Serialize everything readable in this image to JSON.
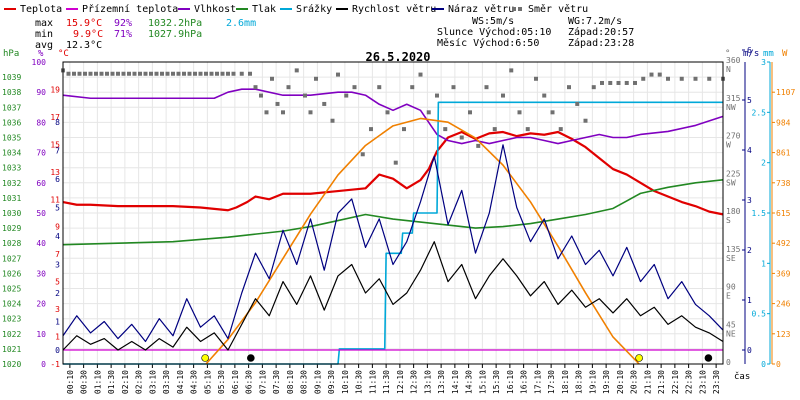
{
  "colors": {
    "teplota": "#e00000",
    "pocitova": "#d000d0",
    "vlhkost": "#8000c0",
    "tlak": "#228822",
    "srazky": "#00a8d8",
    "rychlost": "#000000",
    "naraz": "#000080",
    "smer": "#707070",
    "slunce": "#f08000"
  },
  "legend": [
    {
      "label": "Teplota",
      "color_key": "teplota",
      "kind": "line"
    },
    {
      "label": "Přízemní teplota",
      "color_key": "pocitova",
      "kind": "line"
    },
    {
      "label": "Vlhkost",
      "color_key": "vlhkost",
      "kind": "line"
    },
    {
      "label": "Tlak",
      "color_key": "tlak",
      "kind": "line"
    },
    {
      "label": "Srážky",
      "color_key": "srazky",
      "kind": "line"
    },
    {
      "label": "Rychlost větru",
      "color_key": "rychlost",
      "kind": "line"
    },
    {
      "label": "Náraz větru",
      "color_key": "naraz",
      "kind": "line"
    },
    {
      "label": "Směr větru",
      "color_key": "smer",
      "kind": "dots"
    }
  ],
  "stats": {
    "max_label": "max",
    "min_label": "min",
    "avg_label": "avg",
    "max_temp": "15.9°C",
    "max_hum": "92%",
    "max_press": "1032.2hPa",
    "max_rain": "2.6mm",
    "min_temp": "9.9°C",
    "min_hum": "71%",
    "min_press": "1027.9hPa",
    "avg_temp": "12.3°C"
  },
  "info": {
    "ws": "WS:5m/s",
    "wg": "WG:7.2m/s",
    "slunce": "Slunce Východ:05:10",
    "slunce_zapad": "Západ:20:57",
    "mesic": "Měsíc  Východ:6:50",
    "mesic_zapad": "Západ:23:28"
  },
  "title": "26.5.2020",
  "axis_units": {
    "hpa": "hPa",
    "pct": "%",
    "deg": "°C",
    "dir": "°",
    "ms_right": "m/s",
    "mm": "mm",
    "w": "W",
    "time": "čas"
  },
  "chart_data": {
    "type": "line",
    "title": "26.5.2020",
    "x_ticks": [
      "00:10",
      "00:30",
      "01:10",
      "01:30",
      "02:10",
      "02:30",
      "03:10",
      "03:30",
      "04:10",
      "04:30",
      "05:10",
      "05:30",
      "06:10",
      "06:30",
      "07:10",
      "07:30",
      "08:10",
      "08:30",
      "09:10",
      "09:30",
      "10:10",
      "10:30",
      "11:10",
      "11:30",
      "12:10",
      "12:30",
      "13:10",
      "13:30",
      "14:10",
      "14:30",
      "15:10",
      "15:30",
      "16:10",
      "16:30",
      "17:10",
      "17:30",
      "18:10",
      "18:30",
      "19:10",
      "19:30",
      "20:10",
      "20:30",
      "21:10",
      "21:30",
      "22:10",
      "22:30",
      "23:10",
      "23:30"
    ],
    "axes": {
      "pressure": {
        "unit": "hPa",
        "range": [
          1020,
          1040
        ],
        "ticks": [
          "1020",
          "1021",
          "1022",
          "1023",
          "1024",
          "1025",
          "1026",
          "1027",
          "1028",
          "1029",
          "1030",
          "1031",
          "1032",
          "1033",
          "1034",
          "1035",
          "1036",
          "1037",
          "1038",
          "1039"
        ]
      },
      "humidity": {
        "unit": "%",
        "range": [
          0,
          100
        ],
        "ticks": [
          "0",
          "10",
          "20",
          "30",
          "40",
          "50",
          "60",
          "70",
          "80",
          "90",
          "100"
        ]
      },
      "temperature": {
        "unit": "°C",
        "range": [
          -1,
          21
        ],
        "ticks": [
          "-1",
          "1",
          "3",
          "5",
          "7",
          "9",
          "11",
          "13",
          "15",
          "17",
          "19"
        ]
      },
      "wind_speed_left": {
        "ticks": [
          "0",
          "1",
          "2",
          "3",
          "4",
          "5",
          "6",
          "7",
          "8"
        ]
      },
      "wind_dir": {
        "unit": "°",
        "range": [
          0,
          360
        ],
        "ticks": [
          {
            "deg": "360",
            "dir": "N"
          },
          {
            "deg": "315",
            "dir": "NW"
          },
          {
            "deg": "270",
            "dir": "W"
          },
          {
            "deg": "225",
            "dir": "SW"
          },
          {
            "deg": "180",
            "dir": "S"
          },
          {
            "deg": "135",
            "dir": "SE"
          },
          {
            "deg": "90",
            "dir": "E"
          },
          {
            "deg": "45",
            "dir": "NE"
          },
          {
            "deg": "0",
            "dir": ""
          }
        ]
      },
      "wind_speed_right": {
        "unit": "m/s",
        "ticks": [
          "0",
          "1",
          "2",
          "3",
          "4",
          "5",
          "6"
        ]
      },
      "rain": {
        "unit": "mm",
        "range": [
          0,
          3
        ],
        "ticks": [
          "0",
          "0.5",
          "1",
          "1.5",
          "2",
          "2.5",
          "3"
        ]
      },
      "solar": {
        "unit": "W",
        "range": [
          0,
          1230
        ],
        "ticks": [
          "0",
          "123",
          "246",
          "369",
          "492",
          "615",
          "738",
          "861",
          "984",
          "1107"
        ]
      }
    },
    "series": [
      {
        "name": "Teplota",
        "axis": "temperature",
        "color_key": "teplota",
        "x": [
          0,
          0.5,
          1,
          2,
          3,
          4,
          5,
          5.5,
          6,
          6.3,
          6.7,
          7,
          7.5,
          8,
          9,
          10,
          11,
          11.5,
          12,
          12.5,
          13,
          13.3,
          13.6,
          14,
          14.5,
          15,
          15.5,
          16,
          16.5,
          17,
          17.5,
          18,
          18.5,
          19,
          19.5,
          20,
          20.5,
          21,
          21.5,
          22,
          22.5,
          23,
          23.5,
          24
        ],
        "y": [
          10.8,
          10.6,
          10.6,
          10.5,
          10.5,
          10.5,
          10.4,
          10.3,
          10.2,
          10.4,
          10.8,
          11.2,
          11.0,
          11.4,
          11.4,
          11.6,
          11.8,
          12.8,
          12.5,
          11.8,
          12.4,
          13.2,
          14.5,
          15.5,
          15.9,
          15.4,
          15.8,
          15.9,
          15.6,
          15.8,
          15.7,
          15.9,
          15.4,
          14.8,
          14.0,
          13.2,
          12.8,
          12.2,
          11.6,
          11.2,
          10.8,
          10.5,
          10.1,
          9.9
        ]
      },
      {
        "name": "Vlhkost",
        "axis": "humidity",
        "color_key": "vlhkost",
        "x": [
          0,
          1,
          2,
          3,
          4,
          5,
          5.5,
          6,
          6.5,
          7,
          8,
          9,
          10,
          10.5,
          11,
          11.5,
          12,
          12.5,
          13,
          13.3,
          13.6,
          14,
          14.5,
          15,
          15.5,
          16,
          16.5,
          17,
          17.5,
          18,
          18.5,
          19,
          19.5,
          20,
          20.5,
          21,
          22,
          23,
          24
        ],
        "y": [
          89,
          88,
          88,
          88,
          88,
          88,
          88,
          90,
          91,
          91,
          89,
          89,
          90,
          90,
          89,
          86,
          84,
          86,
          84,
          80,
          76,
          74,
          73,
          74,
          73,
          74,
          75,
          75,
          74,
          73,
          74,
          75,
          76,
          75,
          75,
          76,
          77,
          79,
          82
        ]
      },
      {
        "name": "Tlak",
        "axis": "pressure",
        "color_key": "tlak",
        "x": [
          0,
          2,
          4,
          6,
          7,
          8,
          9,
          10,
          11,
          12,
          13,
          14,
          15,
          16,
          17,
          18,
          19,
          20,
          20.5,
          21,
          22,
          23,
          24
        ],
        "y": [
          1027.9,
          1028.0,
          1028.1,
          1028.4,
          1028.6,
          1028.8,
          1029.1,
          1029.5,
          1029.9,
          1029.6,
          1029.4,
          1029.2,
          1029.0,
          1029.1,
          1029.3,
          1029.6,
          1029.9,
          1030.3,
          1030.8,
          1031.3,
          1031.7,
          1032.0,
          1032.2
        ]
      },
      {
        "name": "Srážky",
        "axis": "rain",
        "color_key": "srazky",
        "x": [
          0,
          6.3,
          10.0,
          10.05,
          11.7,
          11.75,
          12.3,
          12.35,
          12.7,
          12.75,
          13.6,
          13.65,
          24
        ],
        "y": [
          0,
          0,
          0,
          0.15,
          0.15,
          1.1,
          1.1,
          1.3,
          1.3,
          1.5,
          1.5,
          2.6,
          2.6
        ]
      },
      {
        "name": "Přízemní teplota",
        "axis": "temperature",
        "color_key": "pocitova",
        "x": [
          0,
          24
        ],
        "y": [
          0,
          0
        ]
      },
      {
        "name": "Sluneční záření",
        "axis": "solar",
        "color_key": "slunce",
        "x": [
          5.2,
          6,
          7,
          8,
          9,
          10,
          11,
          12,
          13,
          14,
          15,
          16,
          17,
          18,
          19,
          20,
          20.95
        ],
        "y": [
          0,
          100,
          250,
          430,
          610,
          770,
          890,
          970,
          1000,
          985,
          920,
          810,
          660,
          480,
          290,
          110,
          0
        ]
      },
      {
        "name": "Náraz větru",
        "axis": "wind_speed_left",
        "color_key": "naraz",
        "x": [
          0,
          0.5,
          1,
          1.5,
          2,
          2.5,
          3,
          3.5,
          4,
          4.5,
          5,
          5.5,
          6,
          6.5,
          7,
          7.5,
          8,
          8.5,
          9,
          9.5,
          10,
          10.5,
          11,
          11.5,
          12,
          12.5,
          13,
          13.5,
          14,
          14.5,
          15,
          15.5,
          16,
          16.5,
          17,
          17.5,
          18,
          18.5,
          19,
          19.5,
          20,
          20.5,
          21,
          21.5,
          22,
          22.5,
          23,
          23.5,
          24
        ],
        "y": [
          0.5,
          1.2,
          0.6,
          1.0,
          0.4,
          0.9,
          0.3,
          1.1,
          0.5,
          1.8,
          0.8,
          1.2,
          0.4,
          2.0,
          3.4,
          2.5,
          4.2,
          3.0,
          4.6,
          2.8,
          4.8,
          5.3,
          3.6,
          4.6,
          3.0,
          3.8,
          5.2,
          6.8,
          4.4,
          5.6,
          3.4,
          4.8,
          7.2,
          5.0,
          3.8,
          4.6,
          3.2,
          4.0,
          3.0,
          3.5,
          2.6,
          3.6,
          2.4,
          3.0,
          1.8,
          2.4,
          1.6,
          1.2,
          0.7
        ]
      },
      {
        "name": "Rychlost větru",
        "axis": "wind_speed_left",
        "color_key": "rychlost",
        "x": [
          0,
          0.5,
          1,
          1.5,
          2,
          2.5,
          3,
          3.5,
          4,
          4.5,
          5,
          5.5,
          6,
          6.5,
          7,
          7.5,
          8,
          8.5,
          9,
          9.5,
          10,
          10.5,
          11,
          11.5,
          12,
          12.5,
          13,
          13.5,
          14,
          14.5,
          15,
          15.5,
          16,
          16.5,
          17,
          17.5,
          18,
          18.5,
          19,
          19.5,
          20,
          20.5,
          21,
          21.5,
          22,
          22.5,
          23,
          23.5,
          24
        ],
        "y": [
          0,
          0.5,
          0.2,
          0.4,
          0,
          0.3,
          0,
          0.4,
          0.1,
          0.8,
          0.3,
          0.6,
          0,
          0.9,
          1.8,
          1.2,
          2.4,
          1.6,
          2.6,
          1.4,
          2.6,
          3.0,
          2.0,
          2.5,
          1.6,
          2.0,
          2.8,
          3.8,
          2.4,
          3.0,
          1.8,
          2.6,
          3.2,
          2.6,
          1.9,
          2.4,
          1.6,
          2.1,
          1.5,
          1.8,
          1.3,
          1.8,
          1.2,
          1.5,
          0.9,
          1.2,
          0.8,
          0.6,
          0.3
        ]
      },
      {
        "name": "Směr větru",
        "axis": "wind_dir",
        "color_key": "smer",
        "x": [
          0,
          0.2,
          0.4,
          0.6,
          0.8,
          1,
          1.2,
          1.4,
          1.6,
          1.8,
          2,
          2.2,
          2.4,
          2.6,
          2.8,
          3,
          3.2,
          3.4,
          3.6,
          3.8,
          4,
          4.2,
          4.4,
          4.6,
          4.8,
          5,
          5.2,
          5.4,
          5.6,
          5.8,
          6,
          6.2,
          6.5,
          6.8,
          7,
          7.2,
          7.4,
          7.6,
          7.8,
          8,
          8.2,
          8.5,
          8.8,
          9,
          9.2,
          9.5,
          9.8,
          10,
          10.3,
          10.6,
          10.9,
          11.2,
          11.5,
          11.8,
          12.1,
          12.4,
          12.7,
          13,
          13.3,
          13.6,
          13.9,
          14.2,
          14.5,
          14.8,
          15.1,
          15.4,
          15.7,
          16,
          16.3,
          16.6,
          16.9,
          17.2,
          17.5,
          17.8,
          18.1,
          18.4,
          18.7,
          19,
          19.3,
          19.6,
          19.9,
          20.2,
          20.5,
          20.8,
          21.1,
          21.4,
          21.7,
          22,
          22.5,
          23,
          23.5,
          24
        ],
        "y": [
          350,
          346,
          346,
          346,
          346,
          346,
          346,
          346,
          346,
          346,
          346,
          346,
          346,
          346,
          346,
          346,
          346,
          346,
          346,
          346,
          346,
          346,
          346,
          346,
          346,
          346,
          346,
          346,
          346,
          346,
          346,
          346,
          346,
          346,
          330,
          320,
          300,
          340,
          310,
          300,
          330,
          350,
          320,
          300,
          340,
          310,
          290,
          345,
          320,
          330,
          250,
          280,
          330,
          300,
          240,
          280,
          330,
          345,
          300,
          320,
          280,
          330,
          270,
          300,
          260,
          330,
          280,
          320,
          350,
          300,
          280,
          340,
          320,
          300,
          280,
          330,
          310,
          290,
          330,
          335,
          335,
          335,
          335,
          335,
          340,
          345,
          345,
          340,
          340,
          340,
          340,
          340
        ]
      }
    ],
    "markers": [
      {
        "name": "Východ slunce",
        "x": 5.17,
        "color": "#ffff00"
      },
      {
        "name": "Východ měsíce",
        "x": 6.83,
        "color": "#000000"
      },
      {
        "name": "Západ slunce",
        "x": 20.95,
        "color": "#ffff00"
      },
      {
        "name": "Západ měsíce",
        "x": 23.47,
        "color": "#000000"
      }
    ]
  }
}
